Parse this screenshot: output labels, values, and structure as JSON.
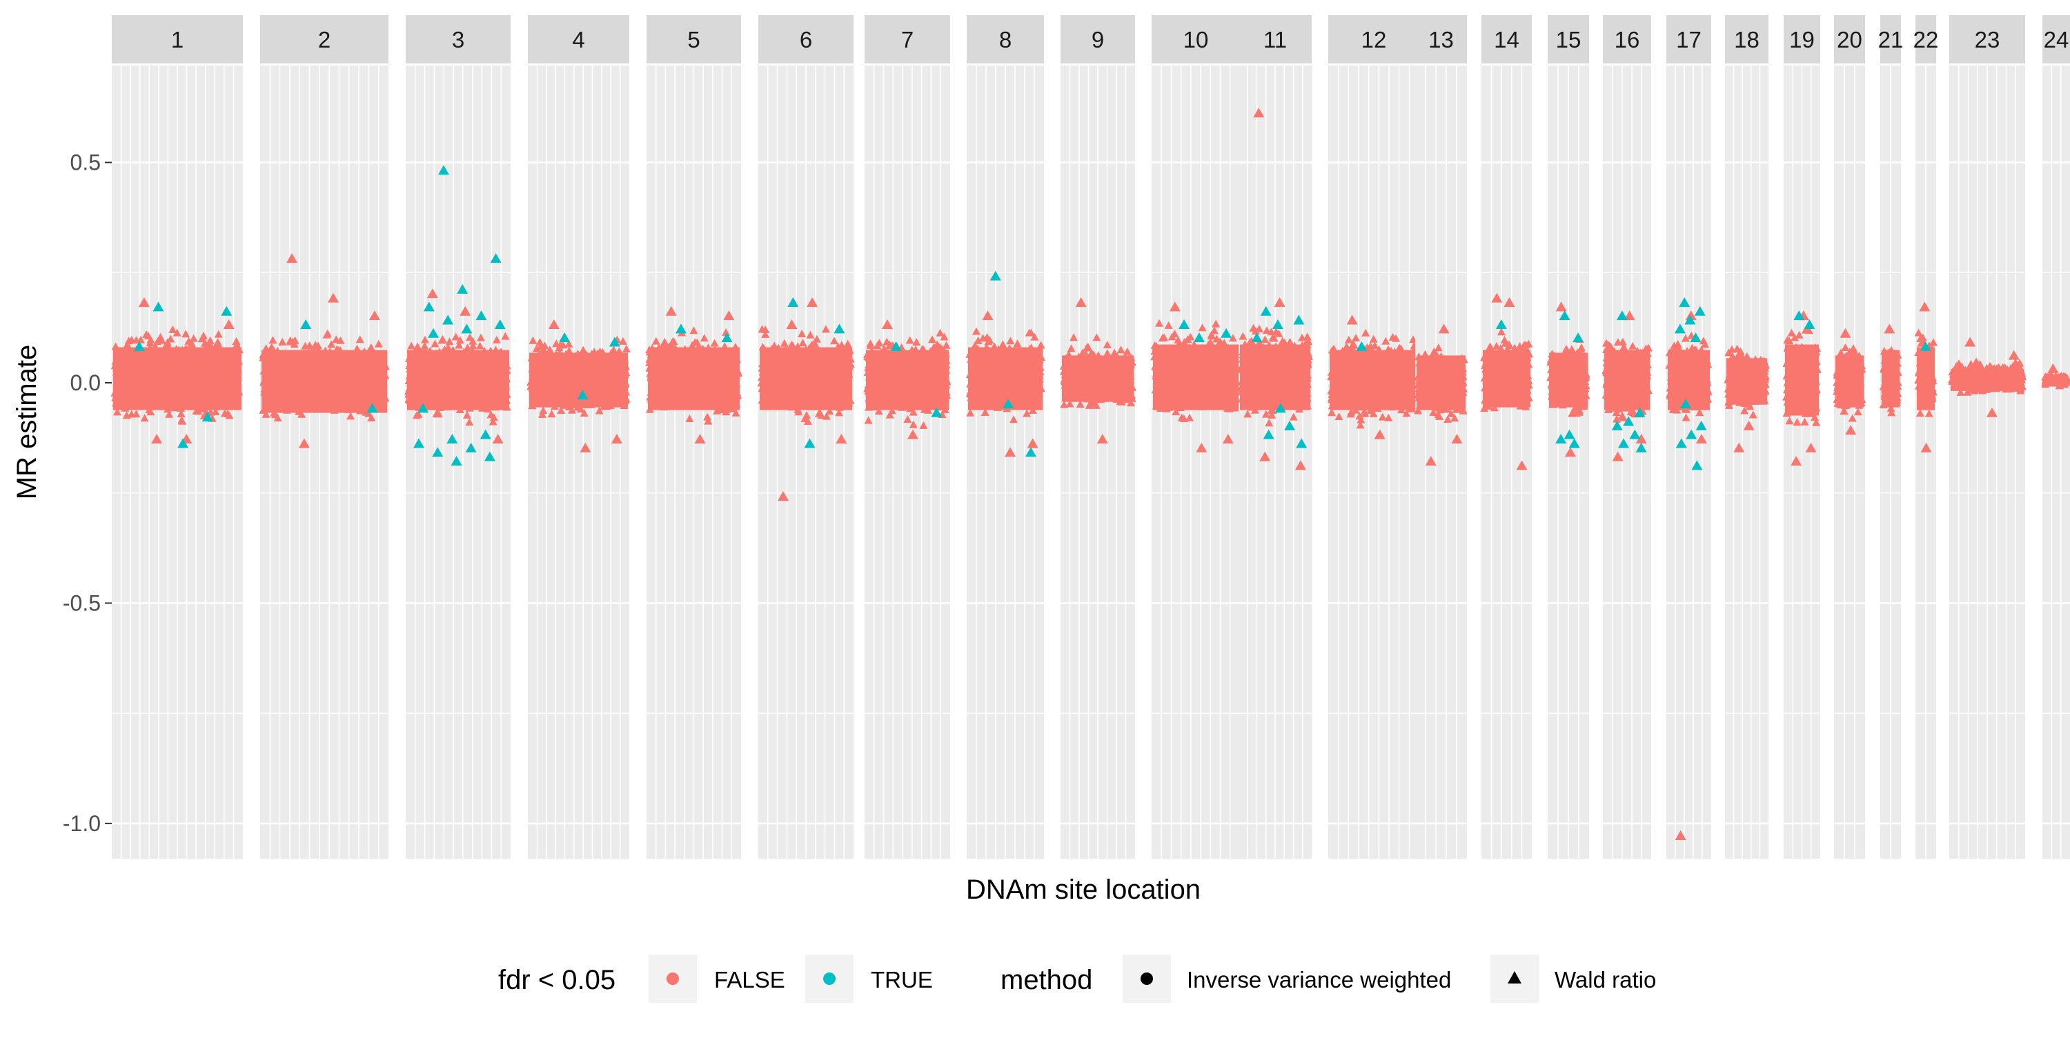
{
  "chart_data": {
    "type": "scatter",
    "title": "",
    "xlabel": "DNAm site location",
    "ylabel": "MR estimate",
    "ylim": [
      -1.08,
      0.72
    ],
    "y_ticks": [
      0.5,
      0.0,
      -0.5,
      -1.0
    ],
    "y_tick_labels": [
      "0.5",
      "0.0",
      "-0.5",
      "-1.0"
    ],
    "grid": true,
    "facets": [
      {
        "label": "1",
        "band": [
          -0.1,
          0.13
        ],
        "sig": [
          0.17,
          0.16,
          -0.14,
          0.08,
          -0.08
        ],
        "out": [
          0.18,
          -0.13,
          0.13,
          -0.13
        ]
      },
      {
        "label": "2",
        "band": [
          -0.11,
          0.12
        ],
        "sig": [
          0.13,
          -0.06
        ],
        "out": [
          0.28,
          0.19,
          0.15,
          -0.14
        ]
      },
      {
        "label": "3",
        "band": [
          -0.1,
          0.12
        ],
        "sig": [
          0.48,
          0.28,
          0.21,
          0.17,
          0.15,
          0.14,
          0.13,
          0.12,
          0.11,
          -0.12,
          -0.13,
          -0.14,
          -0.15,
          -0.16,
          -0.17,
          -0.18,
          -0.06
        ],
        "out": [
          0.2,
          0.16,
          -0.13
        ]
      },
      {
        "label": "4",
        "band": [
          -0.09,
          0.11
        ],
        "sig": [
          0.1,
          0.09,
          -0.03
        ],
        "out": [
          0.13,
          -0.15,
          -0.13
        ]
      },
      {
        "label": "5",
        "band": [
          -0.1,
          0.13
        ],
        "sig": [
          0.12,
          0.1
        ],
        "out": [
          0.16,
          -0.13,
          0.15
        ]
      },
      {
        "label": "6",
        "band": [
          -0.1,
          0.13
        ],
        "sig": [
          0.18,
          0.12,
          -0.14
        ],
        "out": [
          -0.26,
          0.18,
          -0.13,
          0.13
        ]
      },
      {
        "label": "7",
        "band": [
          -0.1,
          0.12
        ],
        "sig": [
          0.08,
          -0.07
        ],
        "out": [
          0.13,
          -0.12
        ]
      },
      {
        "label": "8",
        "band": [
          -0.1,
          0.13
        ],
        "sig": [
          0.24,
          -0.16,
          -0.05
        ],
        "out": [
          0.15,
          -0.16,
          -0.14
        ]
      },
      {
        "label": "9",
        "band": [
          -0.07,
          0.1
        ],
        "sig": [],
        "out": [
          0.18,
          -0.13
        ]
      },
      {
        "label": "10",
        "band": [
          -0.1,
          0.14
        ],
        "sig": [
          0.13,
          0.11,
          0.1
        ],
        "out": [
          0.17,
          -0.15,
          -0.13
        ]
      },
      {
        "label": "11",
        "band": [
          -0.1,
          0.14
        ],
        "sig": [
          0.16,
          0.14,
          0.13,
          0.1,
          -0.1,
          -0.12,
          -0.14,
          -0.06
        ],
        "out": [
          0.61,
          0.18,
          -0.19,
          -0.17
        ]
      },
      {
        "label": "12",
        "band": [
          -0.1,
          0.12
        ],
        "sig": [
          0.08
        ],
        "out": [
          0.14,
          -0.12
        ]
      },
      {
        "label": "13",
        "band": [
          -0.1,
          0.1
        ],
        "sig": [],
        "out": [
          -0.18,
          0.12,
          -0.13
        ]
      },
      {
        "label": "14",
        "band": [
          -0.09,
          0.12
        ],
        "sig": [
          0.13
        ],
        "out": [
          0.19,
          0.18,
          -0.19
        ]
      },
      {
        "label": "15",
        "band": [
          -0.09,
          0.11
        ],
        "sig": [
          0.15,
          0.1,
          -0.12,
          -0.13,
          -0.14
        ],
        "out": [
          0.17,
          -0.16
        ]
      },
      {
        "label": "16",
        "band": [
          -0.1,
          0.12
        ],
        "sig": [
          0.15,
          -0.07,
          -0.09,
          -0.1,
          -0.12,
          -0.14,
          -0.15
        ],
        "out": [
          -0.17,
          0.15,
          -0.13
        ]
      },
      {
        "label": "17",
        "band": [
          -0.1,
          0.12
        ],
        "sig": [
          0.18,
          0.16,
          0.14,
          0.12,
          0.1,
          -0.05,
          -0.1,
          -0.12,
          -0.14,
          -0.19
        ],
        "out": [
          -1.03,
          0.15,
          -0.13
        ]
      },
      {
        "label": "18",
        "band": [
          -0.08,
          0.09
        ],
        "sig": [],
        "out": [
          -0.15,
          -0.1
        ]
      },
      {
        "label": "19",
        "band": [
          -0.12,
          0.14
        ],
        "sig": [
          0.15,
          0.13
        ],
        "out": [
          -0.18,
          0.15,
          -0.15
        ]
      },
      {
        "label": "20",
        "band": [
          -0.09,
          0.1
        ],
        "sig": [],
        "out": [
          0.11,
          -0.11
        ]
      },
      {
        "label": "21",
        "band": [
          -0.09,
          0.12
        ],
        "sig": [],
        "out": [
          0.12
        ]
      },
      {
        "label": "22",
        "band": [
          -0.1,
          0.13
        ],
        "sig": [
          0.08
        ],
        "out": [
          0.17,
          -0.15
        ]
      },
      {
        "label": "23",
        "band": [
          -0.03,
          0.05
        ],
        "sig": [],
        "out": [
          0.09,
          -0.07,
          0.06
        ]
      },
      {
        "label": "24",
        "band": [
          -0.01,
          0.02
        ],
        "sig": [],
        "out": [
          0.03
        ]
      }
    ],
    "legend": {
      "placement": "bottom",
      "groups": [
        {
          "title": "fdr < 0.05",
          "items": [
            {
              "label": "FALSE",
              "color": "#F8766D",
              "shape": "circle"
            },
            {
              "label": "TRUE",
              "color": "#00BFC4",
              "shape": "circle"
            }
          ]
        },
        {
          "title": "method",
          "items": [
            {
              "label": "Inverse variance weighted",
              "color": "#000000",
              "shape": "circle"
            },
            {
              "label": "Wald ratio",
              "color": "#000000",
              "shape": "triangle"
            }
          ]
        }
      ]
    },
    "colors": {
      "false": "#F8766D",
      "true": "#00BFC4",
      "panel": "#EBEBEB",
      "strip": "#D9D9D9"
    }
  }
}
